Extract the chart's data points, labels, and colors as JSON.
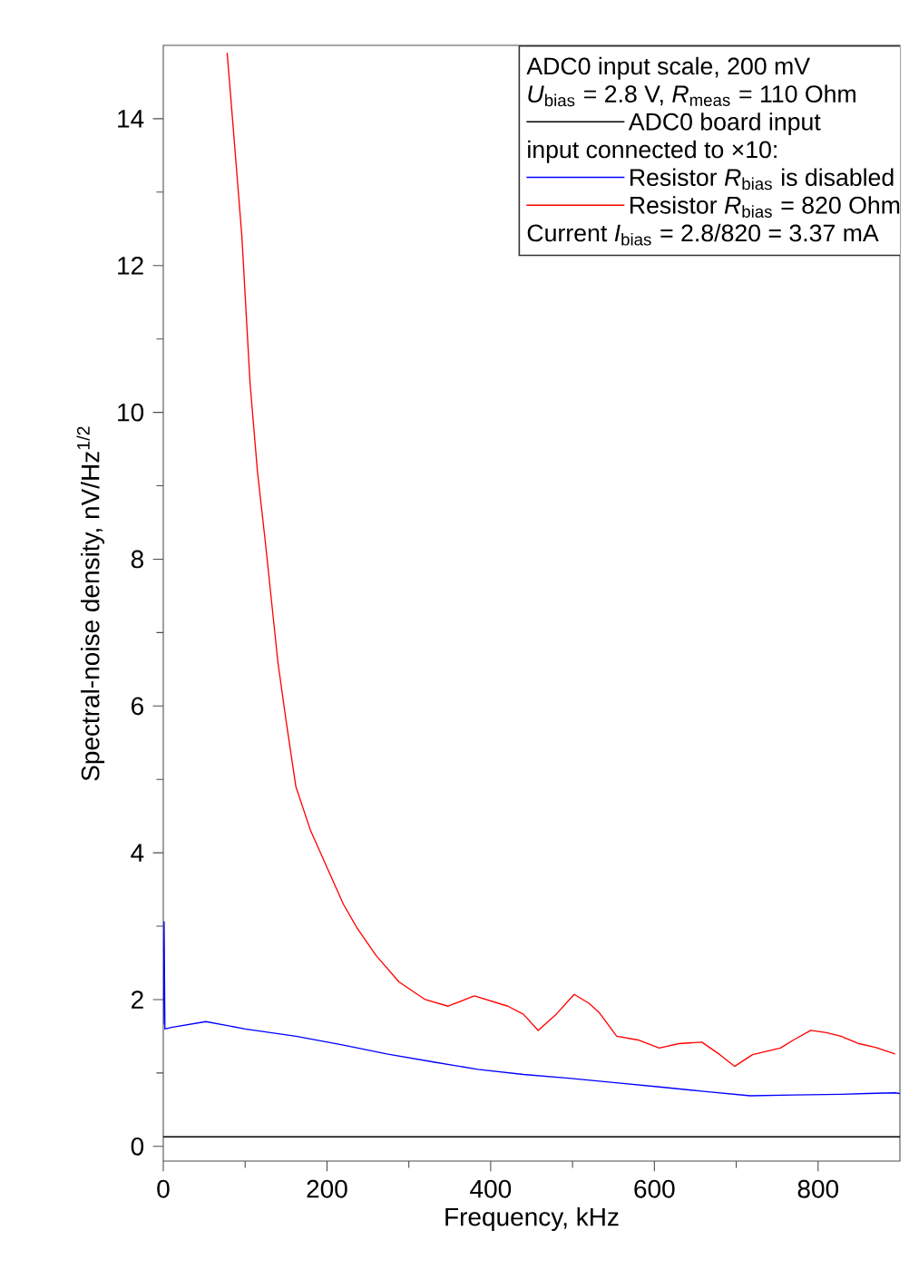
{
  "chart_data": {
    "type": "line",
    "xlabel": "Frequency, kHz",
    "ylabel": "Spectral-noise density, nV/Hz$^{1/2}$",
    "xlim": [
      0,
      900
    ],
    "ylim": [
      -0.2,
      15
    ],
    "xticks": [
      0,
      200,
      400,
      600,
      800
    ],
    "yticks": [
      0,
      2,
      4,
      6,
      8,
      10,
      12,
      14
    ],
    "grid": false,
    "legend": "top right",
    "line_style": "solid",
    "marker": "none",
    "annotations": [
      "ADC0 input scale, 200 mV",
      "*U*$_{bias}$ = 2.8 V, *R*$_{meas}$ = 110 Ohm",
      "input connected to ×10:",
      "Current *I*$_{bias}$ = 2.8/820 = 3.37 mA"
    ],
    "series": [
      {
        "name": "ADC0 board input",
        "color": "#000000",
        "x": [
          0,
          100,
          200,
          300,
          400,
          500,
          600,
          700,
          800,
          900
        ],
        "values": [
          0.13,
          0.13,
          0.13,
          0.13,
          0.13,
          0.13,
          0.13,
          0.13,
          0.13,
          0.13
        ]
      },
      {
        "name": "Resistor *R*$_{bias}$ is disabled",
        "color": "#0000ff",
        "x": [
          0,
          1,
          2,
          10,
          52,
          100,
          162,
          220,
          273,
          330,
          384,
          440,
          495,
          550,
          606,
          660,
          717,
          770,
          828,
          860,
          894,
          900
        ],
        "values": [
          1.66,
          3.06,
          1.6,
          1.62,
          1.7,
          1.6,
          1.5,
          1.38,
          1.26,
          1.15,
          1.05,
          0.98,
          0.93,
          0.87,
          0.81,
          0.75,
          0.69,
          0.7,
          0.71,
          0.72,
          0.73,
          0.72
        ]
      },
      {
        "name": "Resistor *R*$_{bias}$ = 820 Ohm",
        "color": "#ff0000",
        "x": [
          78,
          86,
          96,
          106,
          115,
          125,
          140,
          150,
          162,
          180,
          200,
          220,
          237,
          260,
          288,
          320,
          348,
          380,
          421,
          440,
          458,
          480,
          502,
          520,
          532,
          554,
          580,
          606,
          630,
          658,
          680,
          698,
          720,
          754,
          770,
          791,
          810,
          828,
          850,
          870,
          894
        ],
        "values": [
          14.9,
          13.8,
          12.4,
          10.4,
          9.2,
          8.2,
          6.6,
          5.8,
          4.9,
          4.3,
          3.8,
          3.3,
          2.97,
          2.6,
          2.24,
          2.0,
          1.91,
          2.05,
          1.91,
          1.8,
          1.58,
          1.8,
          2.07,
          1.95,
          1.83,
          1.5,
          1.45,
          1.34,
          1.4,
          1.42,
          1.25,
          1.09,
          1.25,
          1.34,
          1.45,
          1.58,
          1.55,
          1.5,
          1.4,
          1.35,
          1.26
        ]
      }
    ]
  }
}
